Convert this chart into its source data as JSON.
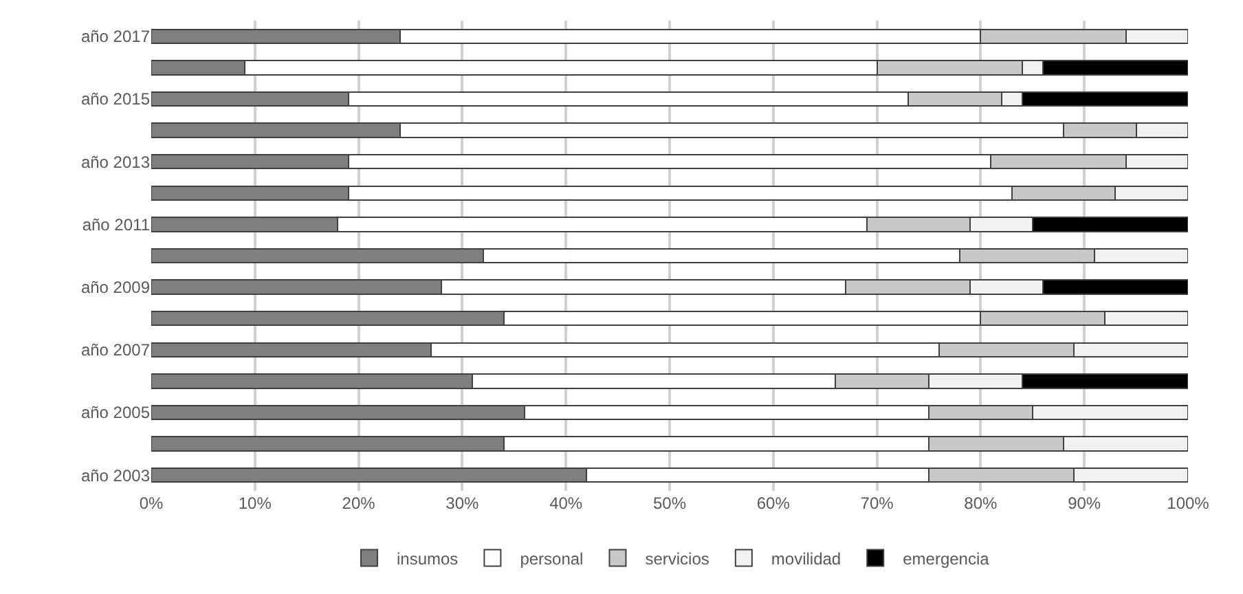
{
  "chart_data": {
    "type": "bar",
    "orientation": "horizontal",
    "stacked": true,
    "categories": [
      "año 2017",
      null,
      "año 2015",
      null,
      "año 2013",
      null,
      "año 2011",
      null,
      "año 2009",
      null,
      "año 2007",
      null,
      "año 2005",
      null,
      "año 2003"
    ],
    "series": [
      {
        "name": "insumos",
        "color": "#7f7f7f",
        "values": [
          24,
          9,
          19,
          24,
          19,
          19,
          18,
          32,
          28,
          34,
          27,
          31,
          36,
          34,
          42
        ]
      },
      {
        "name": "personal",
        "color": "#ffffff",
        "values": [
          56,
          61,
          54,
          64,
          62,
          64,
          51,
          46,
          39,
          46,
          49,
          35,
          39,
          41,
          33
        ]
      },
      {
        "name": "servicios",
        "color": "#c8c8c8",
        "values": [
          14,
          14,
          9,
          7,
          13,
          10,
          10,
          13,
          12,
          12,
          13,
          9,
          10,
          13,
          14
        ]
      },
      {
        "name": "movilidad",
        "color": "#f2f2f2",
        "values": [
          6,
          2,
          2,
          5,
          6,
          7,
          6,
          9,
          7,
          8,
          11,
          9,
          15,
          12,
          11
        ]
      },
      {
        "name": "emergencia",
        "color": "#000000",
        "values": [
          null,
          14,
          16,
          null,
          null,
          null,
          15,
          null,
          14,
          null,
          null,
          16,
          null,
          null,
          null
        ]
      }
    ],
    "xlim": [
      0,
      100
    ],
    "xticks": [
      {
        "value": 0,
        "label": "0%"
      },
      {
        "value": 10,
        "label": "10%"
      },
      {
        "value": 20,
        "label": "20%"
      },
      {
        "value": 30,
        "label": "30%"
      },
      {
        "value": 40,
        "label": "40%"
      },
      {
        "value": 50,
        "label": "50%"
      },
      {
        "value": 60,
        "label": "60%"
      },
      {
        "value": 70,
        "label": "70%"
      },
      {
        "value": 80,
        "label": "80%"
      },
      {
        "value": 90,
        "label": "90%"
      },
      {
        "value": 100,
        "label": "100%"
      }
    ],
    "grid": "x",
    "legend": "bottom"
  }
}
